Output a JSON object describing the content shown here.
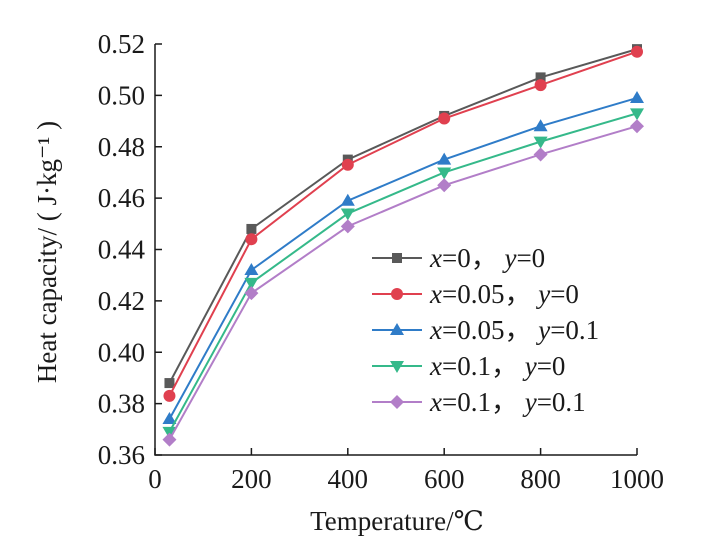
{
  "chart_data": {
    "type": "line",
    "title": "",
    "xlabel": "Temperature/℃",
    "ylabel": "Heat capacity/ ( J·kg⁻¹ )",
    "x": [
      30,
      200,
      400,
      600,
      800,
      1000
    ],
    "xlim": [
      0,
      1000
    ],
    "ylim": [
      0.36,
      0.52
    ],
    "xticks": [
      "0",
      "200",
      "400",
      "600",
      "800",
      "1000"
    ],
    "yticks": [
      "0.36",
      "0.38",
      "0.40",
      "0.42",
      "0.44",
      "0.46",
      "0.48",
      "0.50",
      "0.52"
    ],
    "grid": false,
    "legend_position": "center-right",
    "series": [
      {
        "name": "x=0， y=0",
        "var1": "x",
        "val1": "=0",
        "sep": "， ",
        "var2": "y",
        "val2": "=0",
        "color": "#595959",
        "marker": "square",
        "values": [
          0.388,
          0.448,
          0.475,
          0.492,
          0.507,
          0.518
        ]
      },
      {
        "name": "x=0.05， y=0",
        "var1": "x",
        "val1": "=0.05",
        "sep": "， ",
        "var2": "y",
        "val2": "=0",
        "color": "#e0404f",
        "marker": "circle",
        "values": [
          0.383,
          0.444,
          0.473,
          0.491,
          0.504,
          0.517
        ]
      },
      {
        "name": "x=0.05， y=0.1",
        "var1": "x",
        "val1": "=0.05",
        "sep": "， ",
        "var2": "y",
        "val2": "=0.1",
        "color": "#2f7cc8",
        "marker": "triangle-up",
        "values": [
          0.374,
          0.432,
          0.459,
          0.475,
          0.488,
          0.499
        ]
      },
      {
        "name": "x=0.1， y=0",
        "var1": "x",
        "val1": "=0.1",
        "sep": "， ",
        "var2": "y",
        "val2": "=0",
        "color": "#35b98a",
        "marker": "triangle-down",
        "values": [
          0.369,
          0.427,
          0.454,
          0.47,
          0.482,
          0.493
        ]
      },
      {
        "name": "x=0.1， y=0.1",
        "var1": "x",
        "val1": "=0.1",
        "sep": "， ",
        "var2": "y",
        "val2": "=0.1",
        "color": "#b27ec8",
        "marker": "diamond",
        "values": [
          0.366,
          0.423,
          0.449,
          0.465,
          0.477,
          0.488
        ]
      }
    ]
  }
}
